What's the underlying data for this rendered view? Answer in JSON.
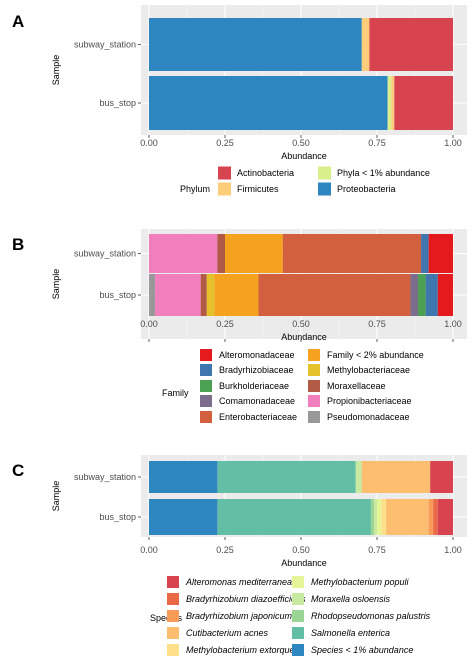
{
  "chart_data": [
    {
      "panel_label": "A",
      "type": "bar",
      "orientation": "horizontal",
      "stacked": true,
      "categories": [
        "subway_station",
        "bus_stop"
      ],
      "xlabel": "Abundance",
      "ylabel": "Sample",
      "xlim": [
        0,
        1
      ],
      "xticks": [
        "0.00",
        "0.25",
        "0.50",
        "0.75",
        "1.00"
      ],
      "legend_title": "Phylum",
      "legend_columns": 2,
      "legend_position": "bottom",
      "legend_italic": false,
      "legend": [
        "Actinobacteria",
        "Firmicutes",
        "Phyla < 1% abundance",
        "Proteobacteria"
      ],
      "series": [
        {
          "name": "Proteobacteria",
          "color": "#2e86c1",
          "values": [
            0.7,
            0.785
          ]
        },
        {
          "name": "Phyla < 1% abundance",
          "color": "#d9ef8b",
          "values": [
            0.0,
            0.012
          ]
        },
        {
          "name": "Firmicutes",
          "color": "#fdcd7a",
          "values": [
            0.025,
            0.01
          ]
        },
        {
          "name": "Actinobacteria",
          "color": "#d7434f",
          "values": [
            0.275,
            0.193
          ]
        }
      ]
    },
    {
      "panel_label": "B",
      "type": "bar",
      "orientation": "horizontal",
      "stacked": true,
      "categories": [
        "subway_station",
        "bus_stop"
      ],
      "xlabel": "Abundance",
      "ylabel": "Sample",
      "xlim": [
        0,
        1
      ],
      "xticks": [
        "0.00",
        "0.25",
        "0.50",
        "0.75",
        "1.00"
      ],
      "legend_title": "Family",
      "legend_columns": 2,
      "legend_position": "bottom",
      "legend_italic": false,
      "legend": [
        "Alteromonadaceae",
        "Bradyrhizobiaceae",
        "Burkholderiaceae",
        "Comamonadaceae",
        "Enterobacteriaceae",
        "Family < 2% abundance",
        "Methylobacteriaceae",
        "Moraxellaceae",
        "Propionibacteriaceae",
        "Pseudomonadaceae"
      ],
      "series": [
        {
          "name": "Pseudomonadaceae",
          "color": "#999999",
          "values": [
            0.0,
            0.02
          ]
        },
        {
          "name": "Propionibacteriaceae",
          "color": "#f17fbd",
          "values": [
            0.225,
            0.15
          ]
        },
        {
          "name": "Moraxellaceae",
          "color": "#b15a45",
          "values": [
            0.025,
            0.02
          ]
        },
        {
          "name": "Methylobacteriaceae",
          "color": "#e5c12c",
          "values": [
            0.0,
            0.025
          ]
        },
        {
          "name": "Family < 2% abundance",
          "color": "#f5a21e",
          "values": [
            0.19,
            0.145
          ]
        },
        {
          "name": "Enterobacteriaceae",
          "color": "#d25f3d",
          "values": [
            0.455,
            0.5
          ]
        },
        {
          "name": "Comamonadaceae",
          "color": "#7c6d8c",
          "values": [
            0.0,
            0.025
          ]
        },
        {
          "name": "Burkholderiaceae",
          "color": "#4aa153",
          "values": [
            0.0,
            0.025
          ]
        },
        {
          "name": "Bradyrhizobiaceae",
          "color": "#3f76ae",
          "values": [
            0.025,
            0.04
          ]
        },
        {
          "name": "Alteromonadaceae",
          "color": "#e41a1c",
          "values": [
            0.08,
            0.05
          ]
        }
      ]
    },
    {
      "panel_label": "C",
      "type": "bar",
      "orientation": "horizontal",
      "stacked": true,
      "categories": [
        "subway_station",
        "bus_stop"
      ],
      "xlabel": "Abundance",
      "ylabel": "Sample",
      "xlim": [
        0,
        1
      ],
      "xticks": [
        "0.00",
        "0.25",
        "0.50",
        "0.75",
        "1.00"
      ],
      "legend_title": "Species",
      "legend_columns": 2,
      "legend_position": "bottom",
      "legend_italic": true,
      "legend": [
        "Alteromonas mediterranea",
        "Bradyrhizobium diazoefficiens",
        "Bradyrhizobium japonicum",
        "Cutibacterium acnes",
        "Methylobacterium extorquens",
        "Methylobacterium populi",
        "Moraxella osloensis",
        "Rhodopseudomonas palustris",
        "Salmonella enterica",
        "Species < 1% abundance"
      ],
      "series": [
        {
          "name": "Species < 1% abundance",
          "color": "#2e86c1",
          "values": [
            0.225,
            0.225
          ]
        },
        {
          "name": "Salmonella enterica",
          "color": "#62bfa6",
          "values": [
            0.455,
            0.505
          ]
        },
        {
          "name": "Rhodopseudomonas palustris",
          "color": "#99d594",
          "values": [
            0.0,
            0.01
          ]
        },
        {
          "name": "Moraxella osloensis",
          "color": "#c7e9a0",
          "values": [
            0.02,
            0.01
          ]
        },
        {
          "name": "Methylobacterium populi",
          "color": "#e6f598",
          "values": [
            0.0,
            0.015
          ]
        },
        {
          "name": "Methylobacterium extorquens",
          "color": "#fee08b",
          "values": [
            0.0,
            0.015
          ]
        },
        {
          "name": "Cutibacterium acnes",
          "color": "#fdbf6f",
          "values": [
            0.225,
            0.14
          ]
        },
        {
          "name": "Bradyrhizobium japonicum",
          "color": "#f99a58",
          "values": [
            0.0,
            0.015
          ]
        },
        {
          "name": "Bradyrhizobium diazoefficiens",
          "color": "#ea6a48",
          "values": [
            0.0,
            0.015
          ]
        },
        {
          "name": "Alteromonas mediterranea",
          "color": "#d7434f",
          "values": [
            0.075,
            0.05
          ]
        }
      ]
    }
  ]
}
